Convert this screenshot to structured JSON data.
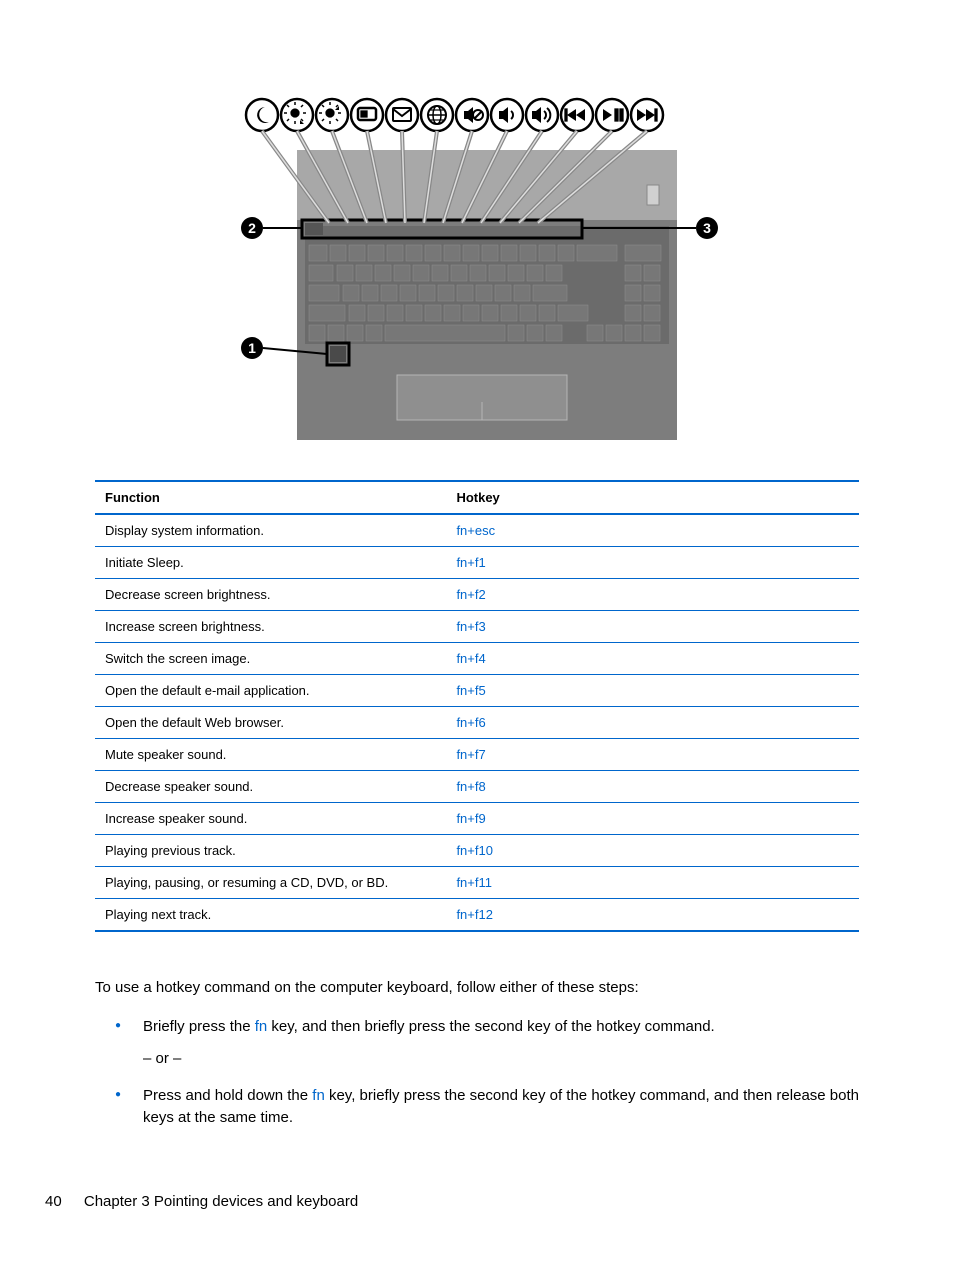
{
  "colors": {
    "accent": "#0066cc",
    "text": "#000000",
    "diagram_gray_light": "#bdbdbd",
    "diagram_gray_mid": "#8a8a8a",
    "diagram_gray_dark": "#6b6b6b",
    "background": "#ffffff"
  },
  "diagram": {
    "callouts": [
      "1",
      "2",
      "3"
    ],
    "icon_count": 12
  },
  "table": {
    "headers": {
      "function": "Function",
      "hotkey": "Hotkey"
    },
    "rows": [
      {
        "function": "Display system information.",
        "hotkey": "fn+esc"
      },
      {
        "function": "Initiate Sleep.",
        "hotkey": "fn+f1"
      },
      {
        "function": "Decrease screen brightness.",
        "hotkey": "fn+f2"
      },
      {
        "function": "Increase screen brightness.",
        "hotkey": "fn+f3"
      },
      {
        "function": "Switch the screen image.",
        "hotkey": "fn+f4"
      },
      {
        "function": "Open the default e-mail application.",
        "hotkey": "fn+f5"
      },
      {
        "function": "Open the default Web browser.",
        "hotkey": "fn+f6"
      },
      {
        "function": "Mute speaker sound.",
        "hotkey": "fn+f7"
      },
      {
        "function": "Decrease speaker sound.",
        "hotkey": "fn+f8"
      },
      {
        "function": "Increase speaker sound.",
        "hotkey": "fn+f9"
      },
      {
        "function": "Playing previous track.",
        "hotkey": "fn+f10"
      },
      {
        "function": "Playing, pausing, or resuming a CD, DVD, or BD.",
        "hotkey": "fn+f11"
      },
      {
        "function": "Playing next track.",
        "hotkey": "fn+f12"
      }
    ]
  },
  "body": {
    "intro": "To use a hotkey command on the computer keyboard, follow either of these steps:",
    "step1_pre": "Briefly press the ",
    "step1_fn": "fn",
    "step1_post": " key, and then briefly press the second key of the hotkey command.",
    "or": "– or –",
    "step2_pre": "Press and hold down the ",
    "step2_fn": "fn",
    "step2_post": " key, briefly press the second key of the hotkey command, and then release both keys at the same time."
  },
  "footer": {
    "page": "40",
    "chapter": "Chapter 3   Pointing devices and keyboard"
  }
}
